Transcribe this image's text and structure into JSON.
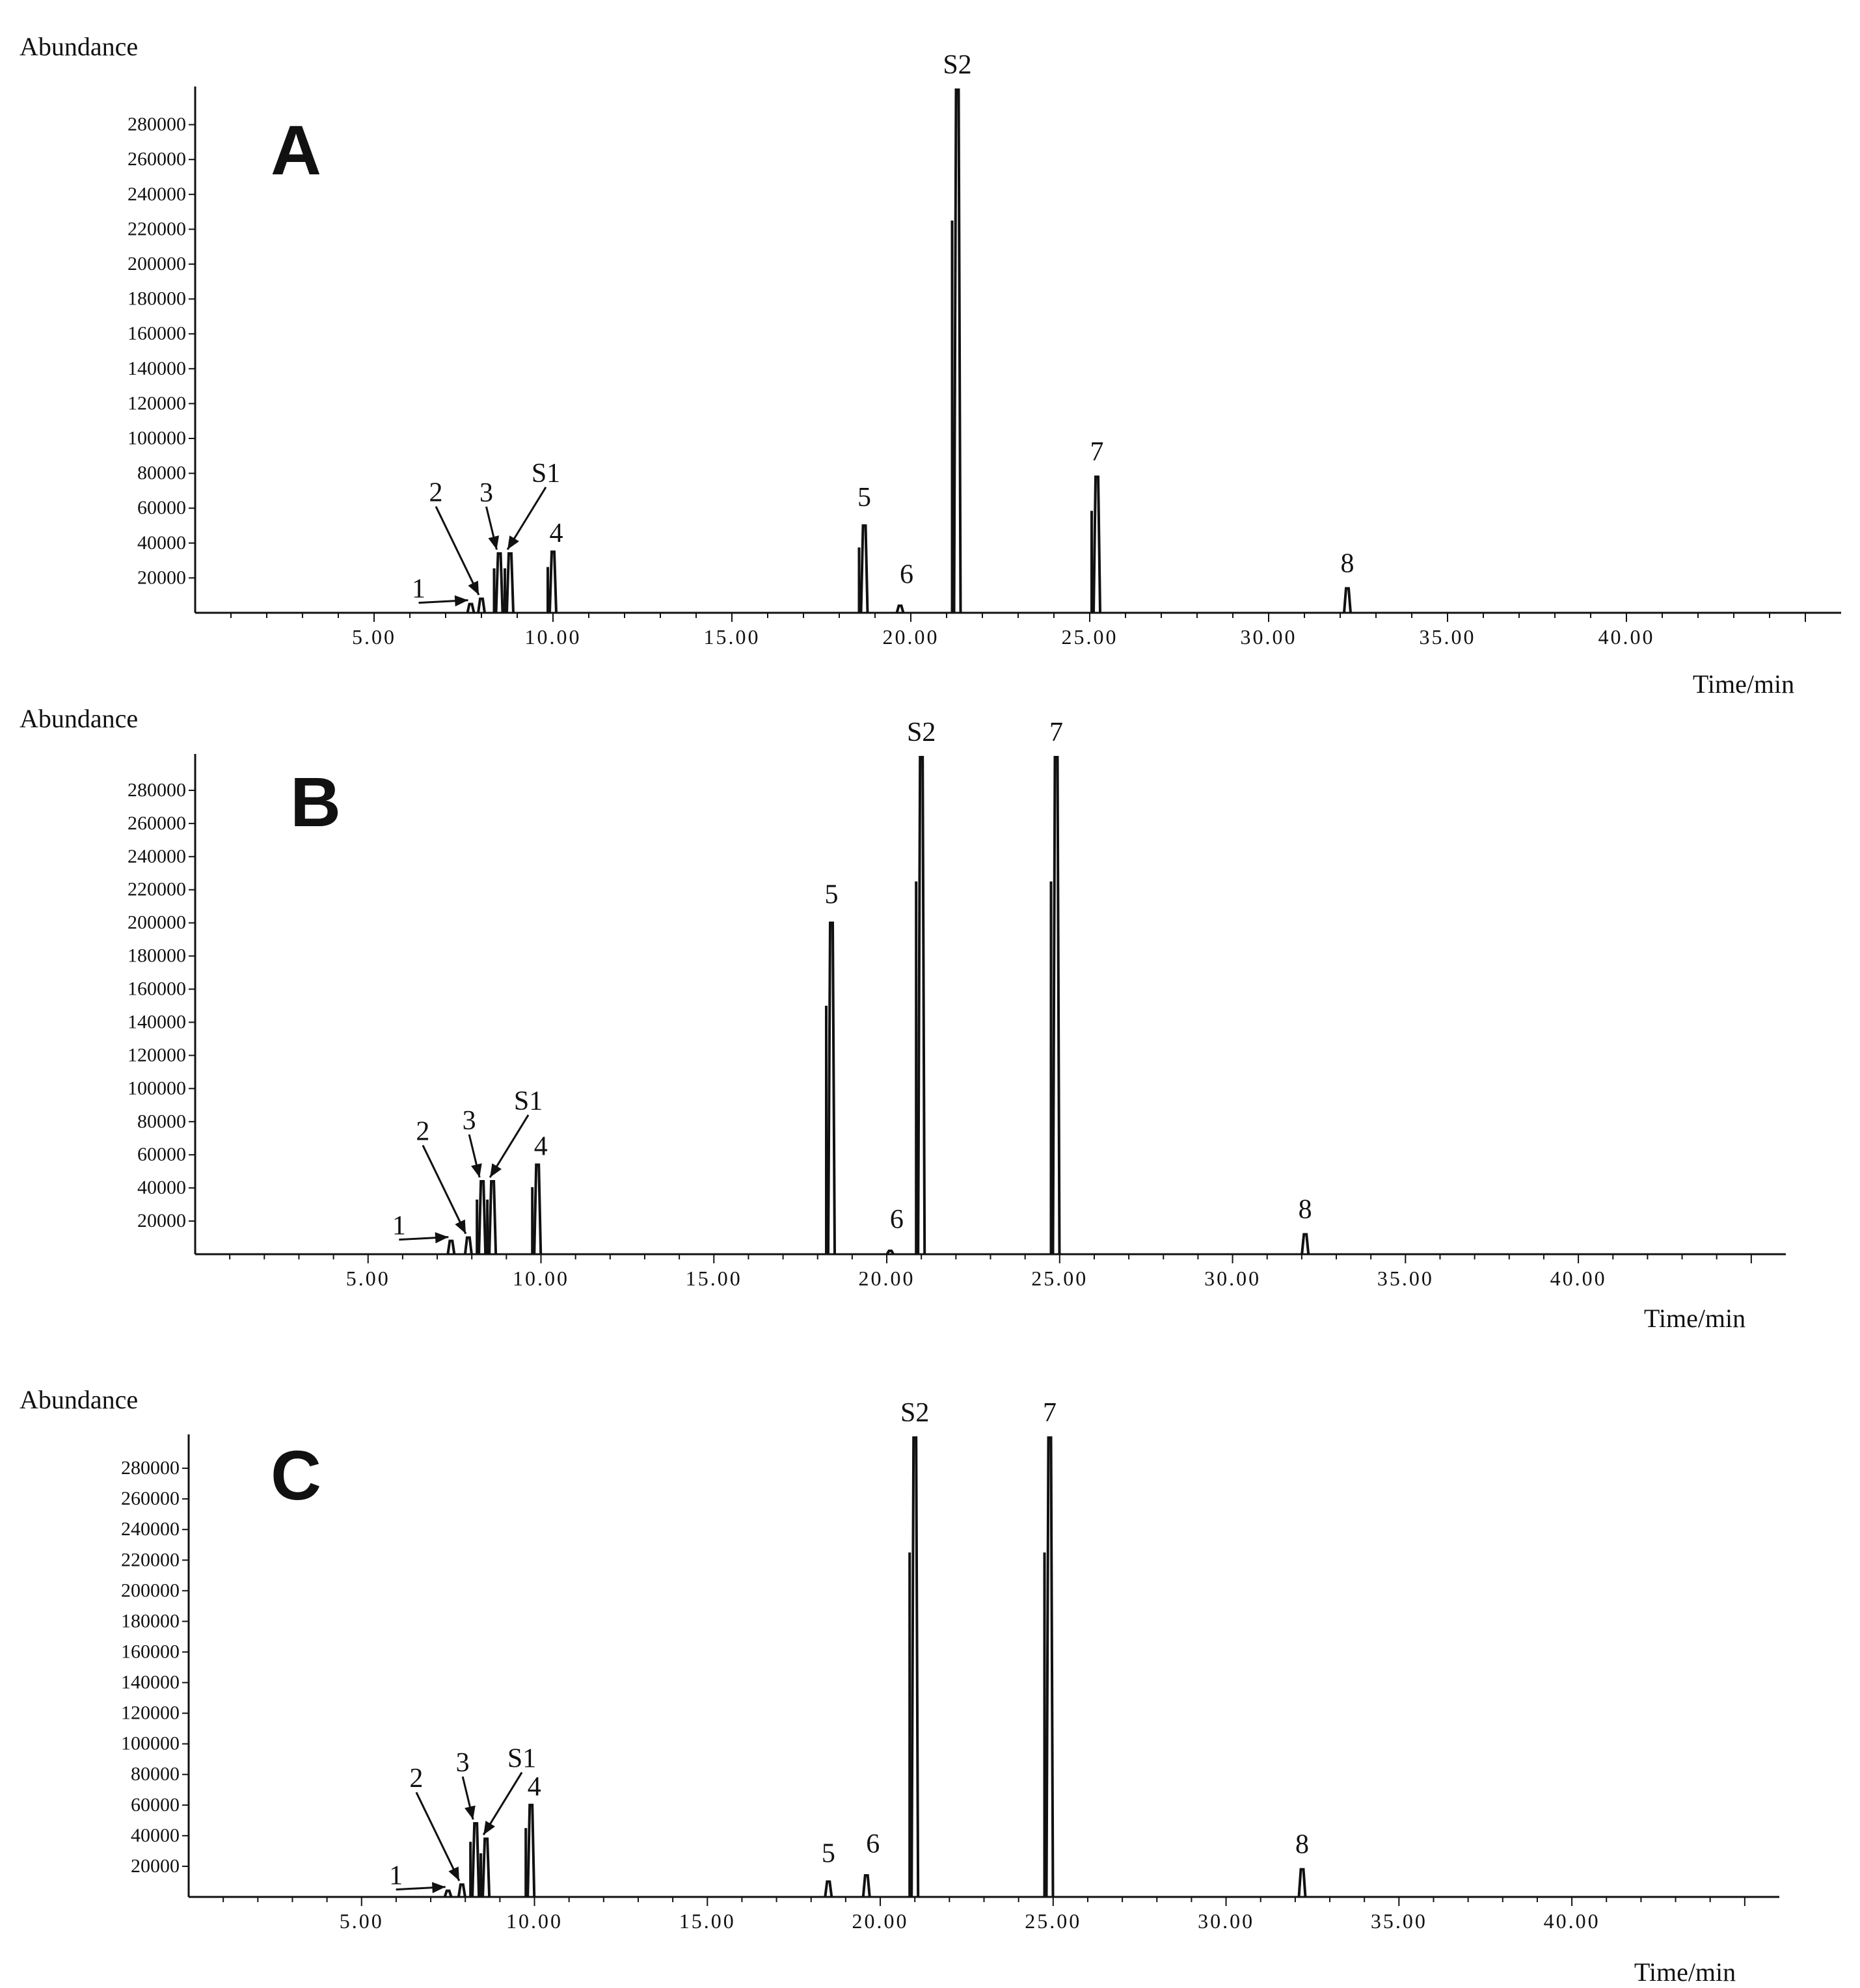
{
  "chart_data": [
    {
      "type": "line",
      "panel": "A",
      "ylabel": "Abundance",
      "xlabel": "Time/min",
      "xlim": [
        0,
        46
      ],
      "ylim": [
        0,
        300000
      ],
      "x_ticks": [
        5,
        10,
        15,
        20,
        25,
        30,
        35,
        40
      ],
      "x_tick_labels": [
        "5.00",
        "10.00",
        "15.00",
        "20.00",
        "25.00",
        "30.00",
        "35.00",
        "40.00"
      ],
      "y_ticks": [
        20000,
        40000,
        60000,
        80000,
        100000,
        120000,
        140000,
        160000,
        180000,
        200000,
        220000,
        240000,
        260000,
        280000
      ],
      "y_tick_labels": [
        "20000",
        "40000",
        "60000",
        "80000",
        "100000",
        "120000",
        "140000",
        "160000",
        "180000",
        "200000",
        "220000",
        "240000",
        "260000",
        "280000"
      ],
      "peaks": [
        {
          "label": "1",
          "x": 7.7,
          "y": 5000,
          "arrow": true
        },
        {
          "label": "2",
          "x": 8.0,
          "y": 8000,
          "arrow": true
        },
        {
          "label": "3",
          "x": 8.5,
          "y": 34000,
          "arrow": true
        },
        {
          "label": "S1",
          "x": 8.8,
          "y": 34000,
          "arrow": true
        },
        {
          "label": "4",
          "x": 10.0,
          "y": 35000,
          "arrow": false
        },
        {
          "label": "5",
          "x": 18.7,
          "y": 50000,
          "arrow": false
        },
        {
          "label": "6",
          "x": 19.7,
          "y": 4000,
          "arrow": false
        },
        {
          "label": "S2",
          "x": 21.3,
          "y": 300000,
          "arrow": false
        },
        {
          "label": "7",
          "x": 25.2,
          "y": 78000,
          "arrow": false
        },
        {
          "label": "8",
          "x": 32.2,
          "y": 14000,
          "arrow": false
        }
      ]
    },
    {
      "type": "line",
      "panel": "B",
      "ylabel": "Abundance",
      "xlabel": "Time/min",
      "xlim": [
        0,
        46
      ],
      "ylim": [
        0,
        300000
      ],
      "x_ticks": [
        5,
        10,
        15,
        20,
        25,
        30,
        35,
        40
      ],
      "x_tick_labels": [
        "5.00",
        "10.00",
        "15.00",
        "20.00",
        "25.00",
        "30.00",
        "35.00",
        "40.00"
      ],
      "y_ticks": [
        20000,
        40000,
        60000,
        80000,
        100000,
        120000,
        140000,
        160000,
        180000,
        200000,
        220000,
        240000,
        260000,
        280000
      ],
      "y_tick_labels": [
        "20000",
        "40000",
        "60000",
        "80000",
        "100000",
        "120000",
        "140000",
        "160000",
        "180000",
        "200000",
        "220000",
        "240000",
        "260000",
        "280000"
      ],
      "peaks": [
        {
          "label": "1",
          "x": 7.4,
          "y": 8000,
          "arrow": true
        },
        {
          "label": "2",
          "x": 7.9,
          "y": 10000,
          "arrow": true
        },
        {
          "label": "3",
          "x": 8.3,
          "y": 44000,
          "arrow": true
        },
        {
          "label": "S1",
          "x": 8.6,
          "y": 44000,
          "arrow": true
        },
        {
          "label": "4",
          "x": 9.9,
          "y": 54000,
          "arrow": false
        },
        {
          "label": "5",
          "x": 18.4,
          "y": 200000,
          "arrow": false
        },
        {
          "label": "6",
          "x": 20.1,
          "y": 2000,
          "arrow": false
        },
        {
          "label": "S2",
          "x": 21.0,
          "y": 300000,
          "arrow": false
        },
        {
          "label": "7",
          "x": 24.9,
          "y": 300000,
          "arrow": false
        },
        {
          "label": "8",
          "x": 32.1,
          "y": 12000,
          "arrow": false
        }
      ]
    },
    {
      "type": "line",
      "panel": "C",
      "ylabel": "Abundance",
      "xlabel": "Time/min",
      "xlim": [
        0,
        46
      ],
      "ylim": [
        0,
        300000
      ],
      "x_ticks": [
        5,
        10,
        15,
        20,
        25,
        30,
        35,
        40
      ],
      "x_tick_labels": [
        "5.00",
        "10.00",
        "15.00",
        "20.00",
        "25.00",
        "30.00",
        "35.00",
        "40.00"
      ],
      "y_ticks": [
        20000,
        40000,
        60000,
        80000,
        100000,
        120000,
        140000,
        160000,
        180000,
        200000,
        220000,
        240000,
        260000,
        280000
      ],
      "y_tick_labels": [
        "20000",
        "40000",
        "60000",
        "80000",
        "100000",
        "120000",
        "140000",
        "160000",
        "180000",
        "200000",
        "220000",
        "240000",
        "260000",
        "280000"
      ],
      "peaks": [
        {
          "label": "1",
          "x": 7.5,
          "y": 4000,
          "arrow": true
        },
        {
          "label": "2",
          "x": 7.9,
          "y": 8000,
          "arrow": true
        },
        {
          "label": "3",
          "x": 8.3,
          "y": 48000,
          "arrow": true
        },
        {
          "label": "S1",
          "x": 8.6,
          "y": 38000,
          "arrow": true
        },
        {
          "label": "4",
          "x": 9.9,
          "y": 60000,
          "arrow": false
        },
        {
          "label": "5",
          "x": 18.5,
          "y": 10000,
          "arrow": false
        },
        {
          "label": "6",
          "x": 19.6,
          "y": 14000,
          "arrow": false
        },
        {
          "label": "S2",
          "x": 21.0,
          "y": 300000,
          "arrow": false
        },
        {
          "label": "7",
          "x": 24.9,
          "y": 300000,
          "arrow": false
        },
        {
          "label": "8",
          "x": 32.2,
          "y": 18000,
          "arrow": false
        }
      ]
    }
  ]
}
